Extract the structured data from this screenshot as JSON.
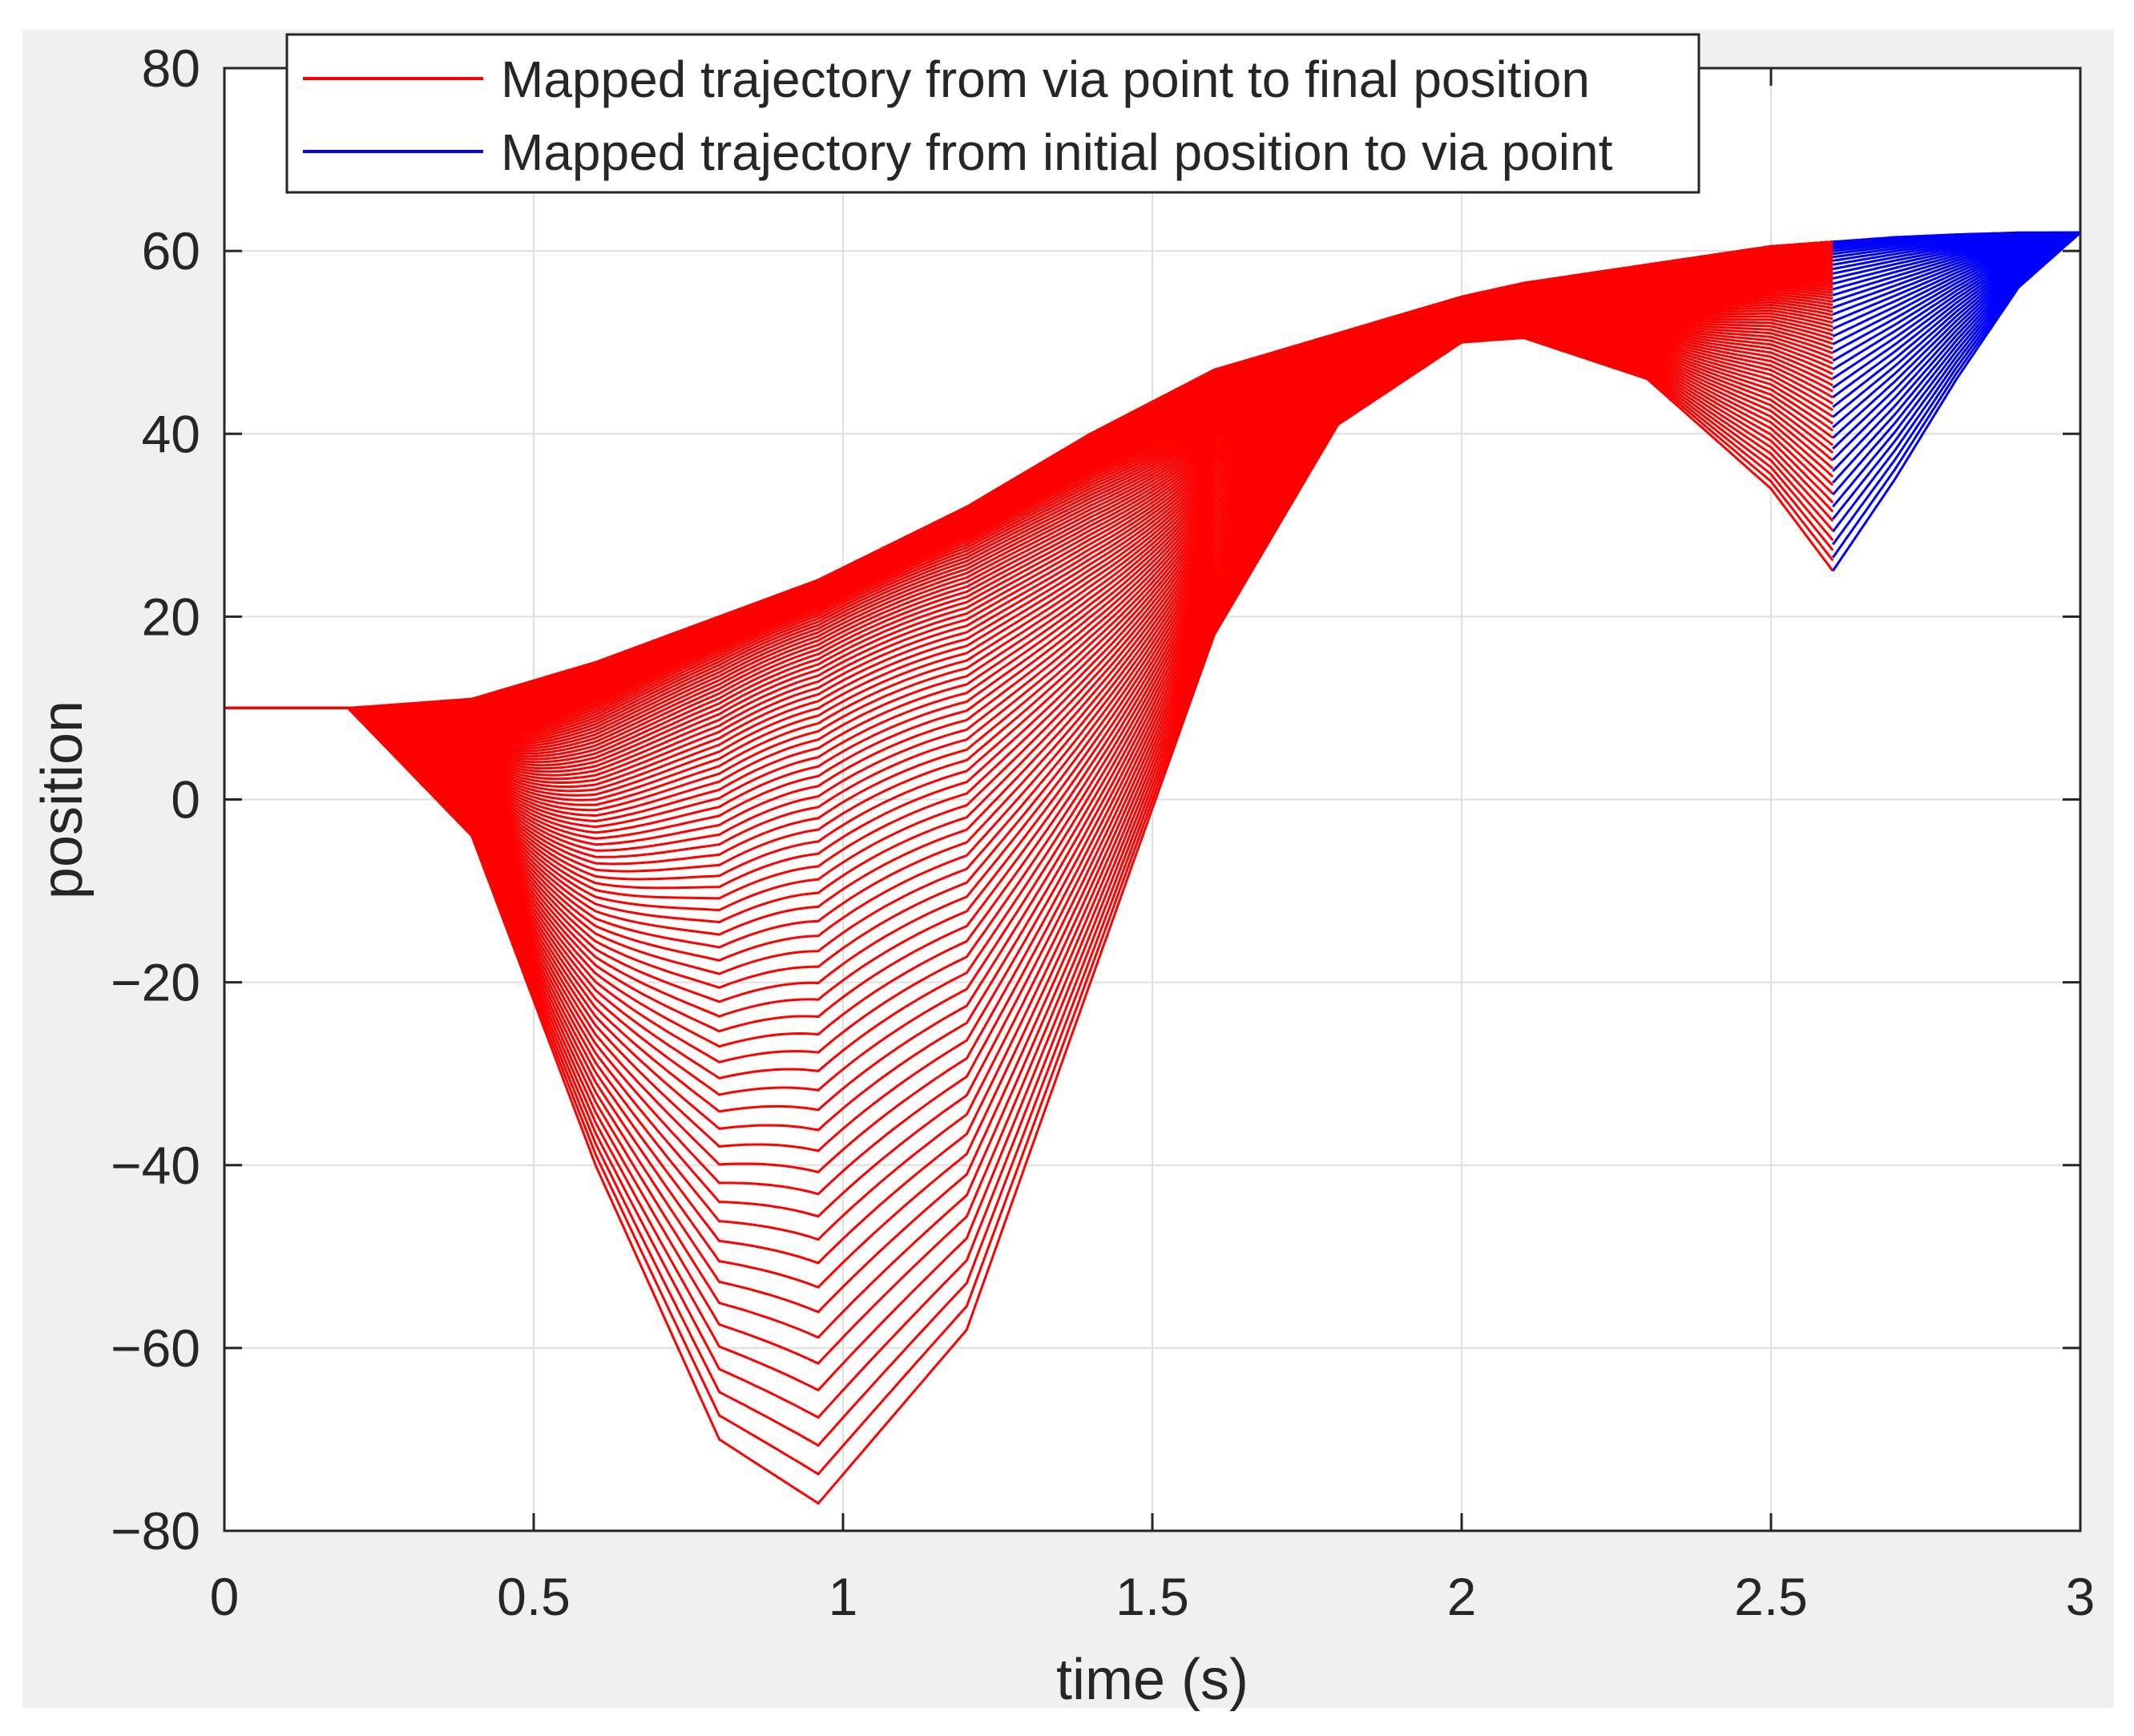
{
  "chart_data": {
    "type": "line",
    "title": "",
    "xlabel": "time (s)",
    "ylabel": "position",
    "xlim": [
      0,
      3
    ],
    "ylim": [
      -80,
      80
    ],
    "grid": true,
    "xticks": [
      0,
      0.5,
      1,
      1.5,
      2,
      2.5,
      3
    ],
    "xtick_labels": [
      "0",
      "0.5",
      "1",
      "1.5",
      "2",
      "2.5",
      "3"
    ],
    "yticks": [
      -80,
      -60,
      -40,
      -20,
      0,
      20,
      40,
      60,
      80
    ],
    "ytick_labels": [
      "−80",
      "−60",
      "−40",
      "−20",
      "0",
      "20",
      "40",
      "60",
      "80"
    ],
    "legend_position": "top",
    "series": [
      {
        "name": "Mapped trajectory from via point to final position",
        "color": "#ff0000",
        "description": "family of curves from t=0 to t=2.6, all starting at 10",
        "x": [
          0,
          0.2,
          0.4,
          0.6,
          0.8,
          0.96,
          1.2,
          1.4,
          1.6,
          1.8,
          2.0,
          2.1,
          2.3,
          2.5,
          2.6
        ],
        "lower_envelope_y": [
          10,
          10,
          -4,
          -40,
          -70,
          -77,
          -58,
          -20,
          18,
          41,
          50,
          50.5,
          46,
          34,
          25
        ],
        "upper_envelope_y": [
          10,
          10,
          11,
          15,
          20,
          24,
          32,
          40,
          47,
          51,
          55,
          56.5,
          58.5,
          60.5,
          61
        ]
      },
      {
        "name": "Mapped trajectory from initial position to via point",
        "color": "#0000ff",
        "description": "family of curves from t=2.6 to t=3, all ending at 62",
        "x": [
          2.6,
          2.7,
          2.8,
          2.9,
          3.0
        ],
        "lower_envelope_y": [
          25,
          35,
          46,
          56,
          62
        ],
        "upper_envelope_y": [
          61,
          61.5,
          61.8,
          62,
          62
        ]
      }
    ]
  }
}
